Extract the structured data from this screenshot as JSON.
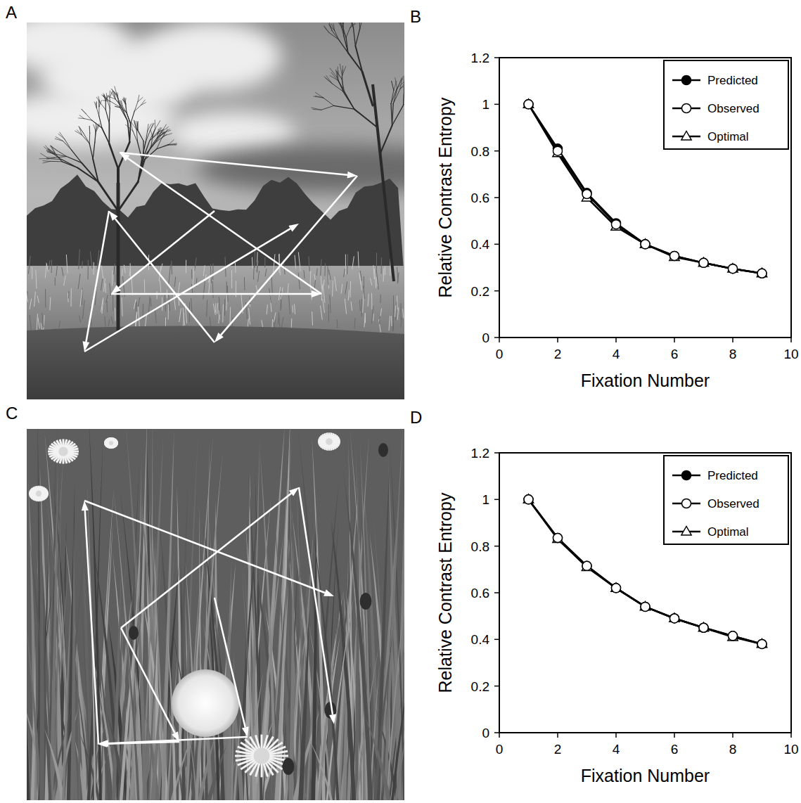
{
  "figure": {
    "panel_labels": [
      "A",
      "B",
      "C",
      "D"
    ]
  },
  "chart_data": [
    {
      "type": "line",
      "x_label": "Fixation Number",
      "y_label": "Relative Contrast Entropy",
      "x": [
        1,
        2,
        3,
        4,
        5,
        6,
        7,
        8,
        9
      ],
      "xlim": [
        0,
        10
      ],
      "xticks": [
        0,
        2,
        4,
        6,
        8,
        10
      ],
      "ylim": [
        0,
        1.2
      ],
      "yticks": [
        0,
        0.2,
        0.4,
        0.6,
        0.8,
        1,
        1.2
      ],
      "legend": "upper right",
      "series": [
        {
          "name": "Predicted",
          "color": "#000000",
          "marker": "circle",
          "values": [
            1,
            0.81,
            0.62,
            0.49,
            0.4,
            0.35,
            0.32,
            0.295,
            0.275
          ]
        },
        {
          "name": "Observed",
          "color": "#000000",
          "marker": "open-circle",
          "values": [
            1,
            0.8,
            0.615,
            0.485,
            0.4,
            0.35,
            0.32,
            0.295,
            0.275
          ]
        },
        {
          "name": "Optimal",
          "color": "#000000",
          "marker": "open-triangle",
          "values": [
            1,
            0.79,
            0.6,
            0.475,
            0.4,
            0.345,
            0.32,
            0.295,
            0.275
          ]
        }
      ]
    },
    {
      "type": "line",
      "x_label": "Fixation Number",
      "y_label": "Relative Contrast Entropy",
      "x": [
        1,
        2,
        3,
        4,
        5,
        6,
        7,
        8,
        9
      ],
      "xlim": [
        0,
        10
      ],
      "xticks": [
        0,
        2,
        4,
        6,
        8,
        10
      ],
      "ylim": [
        0,
        1.2
      ],
      "yticks": [
        0,
        0.2,
        0.4,
        0.6,
        0.8,
        1,
        1.2
      ],
      "legend": "upper right",
      "series": [
        {
          "name": "Predicted",
          "color": "#000000",
          "marker": "circle",
          "values": [
            1,
            0.835,
            0.715,
            0.62,
            0.54,
            0.49,
            0.45,
            0.415,
            0.38
          ]
        },
        {
          "name": "Observed",
          "color": "#000000",
          "marker": "open-circle",
          "values": [
            1,
            0.835,
            0.715,
            0.62,
            0.54,
            0.49,
            0.45,
            0.415,
            0.38
          ]
        },
        {
          "name": "Optimal",
          "color": "#000000",
          "marker": "open-triangle",
          "values": [
            1,
            0.83,
            0.71,
            0.62,
            0.54,
            0.49,
            0.45,
            0.41,
            0.38
          ]
        }
      ]
    }
  ]
}
